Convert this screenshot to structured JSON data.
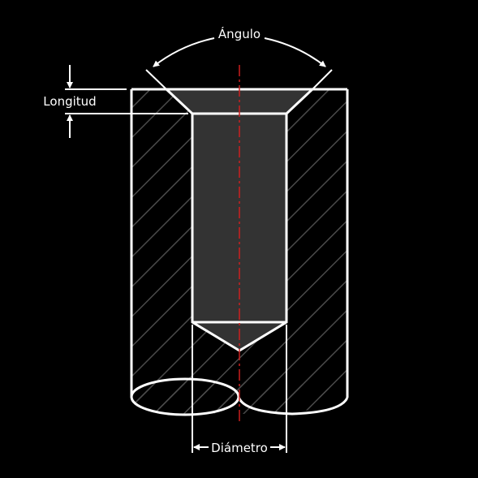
{
  "labels": {
    "angle": "Ángulo",
    "length": "Longitud",
    "diameter": "Diámetro"
  },
  "colors": {
    "background": "#000000",
    "outline": "#ffffff",
    "hatch": "#4a4a4a",
    "hole_fill": "#333333",
    "centerline": "#cc1f1f"
  }
}
